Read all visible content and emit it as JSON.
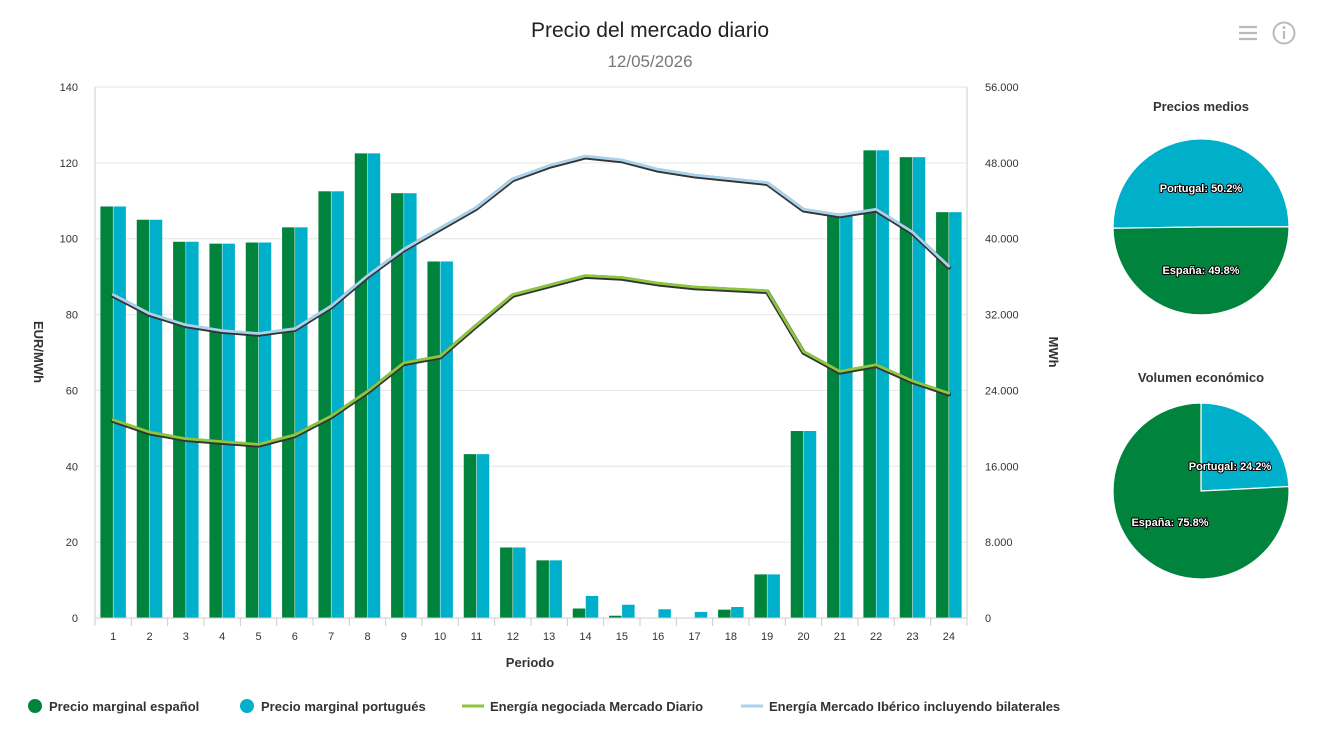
{
  "toolbar": {
    "menu_icon": "hamburger-menu-icon",
    "info_icon": "info-icon"
  },
  "chart_data": [
    {
      "type": "bar",
      "title": "Precio del mercado diario",
      "subtitle": "12/05/2026",
      "xlabel": "Periodo",
      "ylabel": "EUR/MWh",
      "y2label": "MWh",
      "categories": [
        "1",
        "2",
        "3",
        "4",
        "5",
        "6",
        "7",
        "8",
        "9",
        "10",
        "11",
        "12",
        "13",
        "14",
        "15",
        "16",
        "17",
        "18",
        "19",
        "20",
        "21",
        "22",
        "23",
        "24"
      ],
      "ylim": [
        0,
        140
      ],
      "yticks": [
        "0",
        "20",
        "40",
        "60",
        "80",
        "100",
        "120",
        "140"
      ],
      "y2lim": [
        0,
        56000
      ],
      "y2ticks": [
        "0",
        "8.000",
        "16.000",
        "24.000",
        "32.000",
        "40.000",
        "48.000",
        "56.000"
      ],
      "grid": true,
      "legend_position": "bottom-left",
      "series": [
        {
          "name": "Precio marginal español",
          "kind": "bar",
          "axis": "left",
          "color": "#00843d",
          "values": [
            108.5,
            105,
            99.2,
            98.7,
            99,
            103,
            112.5,
            122.5,
            112,
            94,
            43.2,
            18.6,
            15.2,
            2.5,
            0.6,
            0,
            0,
            2.2,
            11.5,
            49.3,
            106.7,
            123.3,
            121.5,
            107
          ]
        },
        {
          "name": "Precio marginal portugués",
          "kind": "bar",
          "axis": "left",
          "color": "#00b0ca",
          "values": [
            108.5,
            105,
            99.2,
            98.7,
            99,
            103,
            112.5,
            122.5,
            112,
            94,
            43.2,
            18.6,
            15.2,
            5.8,
            3.5,
            2.3,
            1.6,
            2.9,
            11.5,
            49.3,
            106.7,
            123.3,
            121.5,
            107
          ]
        },
        {
          "name": "Energía negociada Mercado Diario",
          "kind": "line",
          "axis": "right",
          "color": "#8dc63f",
          "values": [
            20800,
            19500,
            18800,
            18500,
            18200,
            19200,
            21200,
            23800,
            26800,
            27500,
            30800,
            34000,
            35000,
            36000,
            35800,
            35200,
            34800,
            34600,
            34400,
            28000,
            25900,
            26600,
            24900,
            23600
          ]
        },
        {
          "name": "Energía Mercado Ibérico incluyendo bilaterales",
          "kind": "line",
          "axis": "right",
          "color": "#a9d3ec",
          "values": [
            34000,
            32000,
            30800,
            30200,
            29900,
            30400,
            32800,
            36000,
            38800,
            41000,
            43200,
            46200,
            47600,
            48600,
            48200,
            47200,
            46600,
            46200,
            45800,
            43000,
            42400,
            43000,
            40600,
            37000
          ]
        }
      ]
    },
    {
      "type": "pie",
      "title": "Precios medios",
      "slices": [
        {
          "label": "Portugal: 50.2%",
          "value": 50.2,
          "color": "#00b0ca"
        },
        {
          "label": "España: 49.8%",
          "value": 49.8,
          "color": "#00843d"
        }
      ]
    },
    {
      "type": "pie",
      "title": "Volumen económico",
      "slices": [
        {
          "label": "Portugal: 24.2%",
          "value": 24.2,
          "color": "#00b0ca"
        },
        {
          "label": "España: 75.8%",
          "value": 75.8,
          "color": "#00843d"
        }
      ]
    }
  ]
}
